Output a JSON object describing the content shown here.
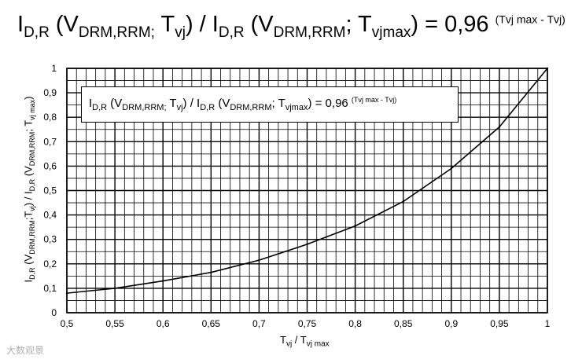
{
  "title": {
    "base": "I",
    "sub1": "D,R",
    "p1": " (V",
    "sub2": "DRM,RRM;",
    "p2": " T",
    "sub3": "vj",
    "p3": ") / I",
    "sub4": "D,R",
    "p4": " (V",
    "sub5": "DRM,RRM",
    "p5": "; T",
    "sub6": "vjmax",
    "p6": ") = 0,96 ",
    "sup": "(Tvj max - Tvj)"
  },
  "legend_box": {
    "base": "I",
    "sub1": "D,R",
    "p1": " (V",
    "sub2": "DRM,RRM;",
    "p2": " T",
    "sub3": "vj",
    "p3": ") / I",
    "sub4": "D,R",
    "p4": " (V",
    "sub5": "DRM,RRM",
    "p5": "; T",
    "sub6": "vjmax",
    "p6": ") = 0,96 ",
    "sup": "(Tvj max - Tvj)"
  },
  "xlabel": {
    "a": "T",
    "sub1": "vj",
    "b": " / T",
    "sub2": "vj max"
  },
  "ylabel": {
    "a": "I",
    "sub1": "D,R",
    "b": " (V",
    "sub2": "DRM,RRM",
    "c": ";T",
    "sub3": "vj",
    "d": ") / I",
    "sub4": "D,R",
    "e": " (V",
    "sub5": "DRM,RRM",
    "f": "; T",
    "sub6": "vj max",
    "g": ")"
  },
  "watermark": "大数观景",
  "chart_data": {
    "type": "line",
    "title": "ID,R (VDRM,RRM; Tvj) / ID,R (VDRM,RRM; Tvjmax) = 0,96 (Tvj max - Tvj)",
    "xlabel": "Tvj / Tvj max",
    "ylabel": "ID,R (VDRM,RRM;Tvj) / ID,R (VDRM,RRM; Tvj max)",
    "xlim": [
      0.5,
      1
    ],
    "ylim": [
      0,
      1
    ],
    "x_ticks": [
      "0,5",
      "0,55",
      "0,6",
      "0,65",
      "0,7",
      "0,75",
      "0,8",
      "0,85",
      "0,9",
      "0,95",
      "1"
    ],
    "y_ticks": [
      "0",
      "0,1",
      "0,2",
      "0,3",
      "0,4",
      "0,5",
      "0,6",
      "0,7",
      "0,8",
      "0,9",
      "1"
    ],
    "grid": true,
    "series": [
      {
        "color": "#000000",
        "x": [
          0.5,
          0.55,
          0.6,
          0.65,
          0.7,
          0.75,
          0.8,
          0.85,
          0.9,
          0.95,
          1.0
        ],
        "y": [
          0.08,
          0.1,
          0.13,
          0.165,
          0.215,
          0.28,
          0.355,
          0.455,
          0.59,
          0.76,
          1.0
        ]
      }
    ]
  }
}
